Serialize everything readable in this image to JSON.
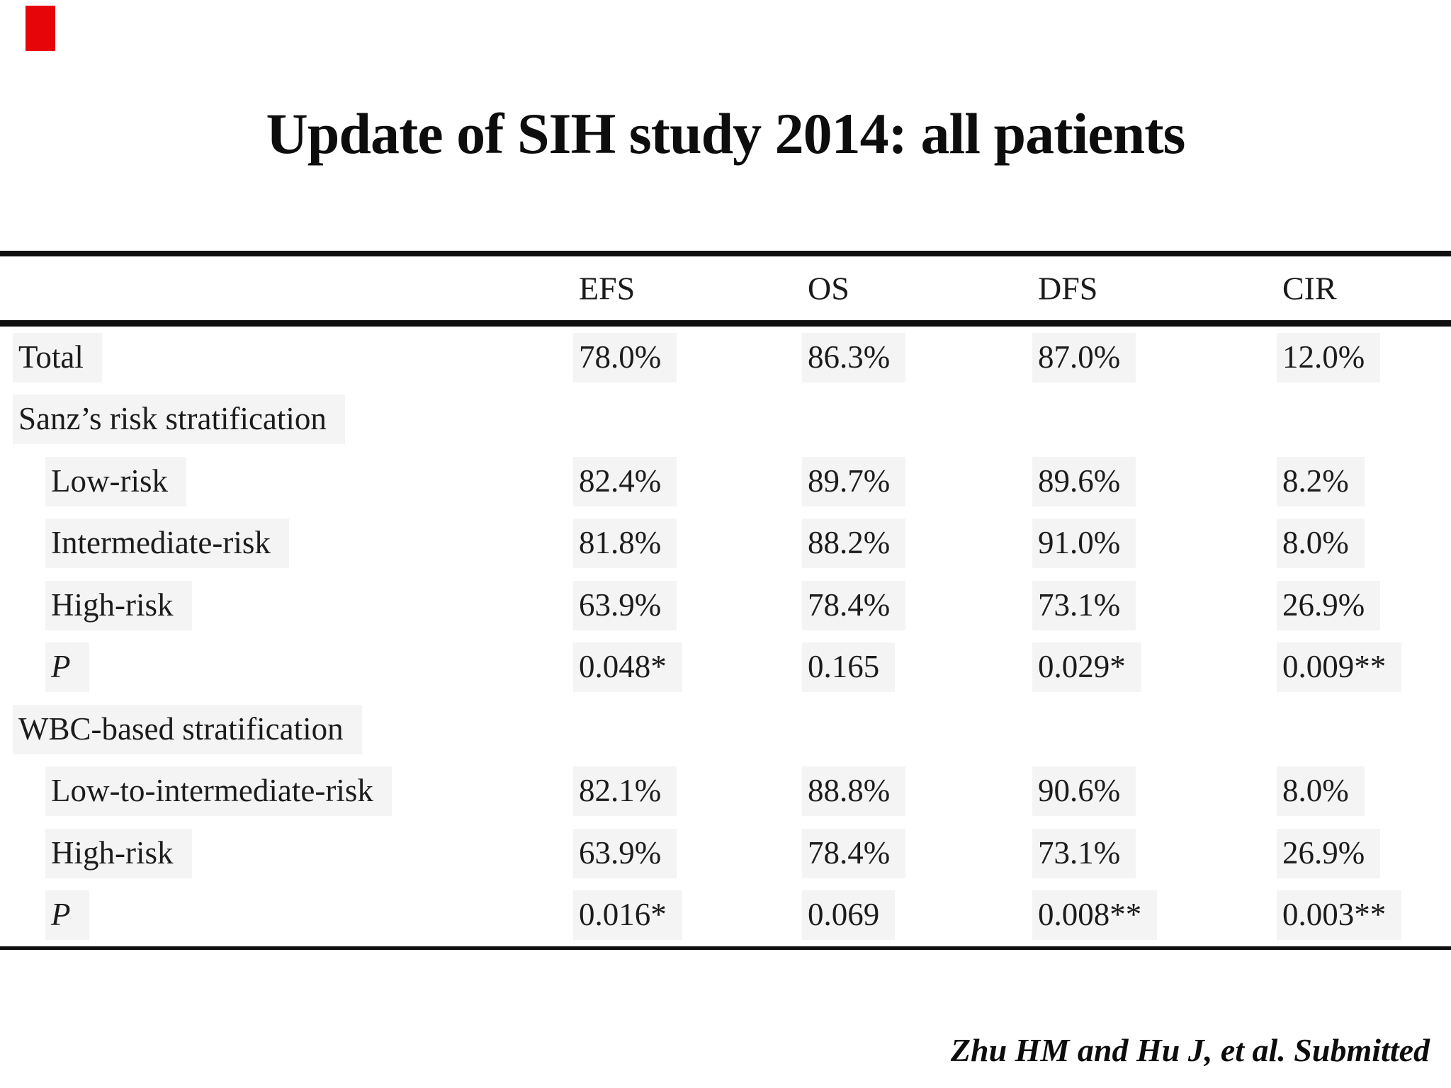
{
  "slide": {
    "title": "Update of SIH study 2014: all patients",
    "footer": "Zhu HM and Hu J, et al. Submitted",
    "accent_color": "#e60508"
  },
  "table": {
    "columns": [
      "EFS",
      "OS",
      "DFS",
      "CIR"
    ],
    "rows": [
      {
        "label": "Total",
        "values": [
          "78.0%",
          "86.3%",
          "87.0%",
          "12.0%"
        ]
      },
      {
        "label": "Sanz’s risk stratification",
        "values": []
      },
      {
        "label": "Low-risk",
        "values": [
          "82.4%",
          "89.7%",
          "89.6%",
          "8.2%"
        ]
      },
      {
        "label": "Intermediate-risk",
        "values": [
          "81.8%",
          "88.2%",
          "91.0%",
          "8.0%"
        ]
      },
      {
        "label": "High-risk",
        "values": [
          "63.9%",
          "78.4%",
          "73.1%",
          "26.9%"
        ]
      },
      {
        "label": "P",
        "values": [
          "0.048*",
          "0.165",
          "0.029*",
          "0.009**"
        ]
      },
      {
        "label": "WBC-based stratification",
        "values": []
      },
      {
        "label": "Low-to-intermediate-risk",
        "values": [
          "82.1%",
          "88.8%",
          "90.6%",
          "8.0%"
        ]
      },
      {
        "label": "High-risk",
        "values": [
          "63.9%",
          "78.4%",
          "73.1%",
          "26.9%"
        ]
      },
      {
        "label": "P",
        "values": [
          "0.016*",
          "0.069",
          "0.008**",
          "0.003**"
        ]
      }
    ]
  }
}
